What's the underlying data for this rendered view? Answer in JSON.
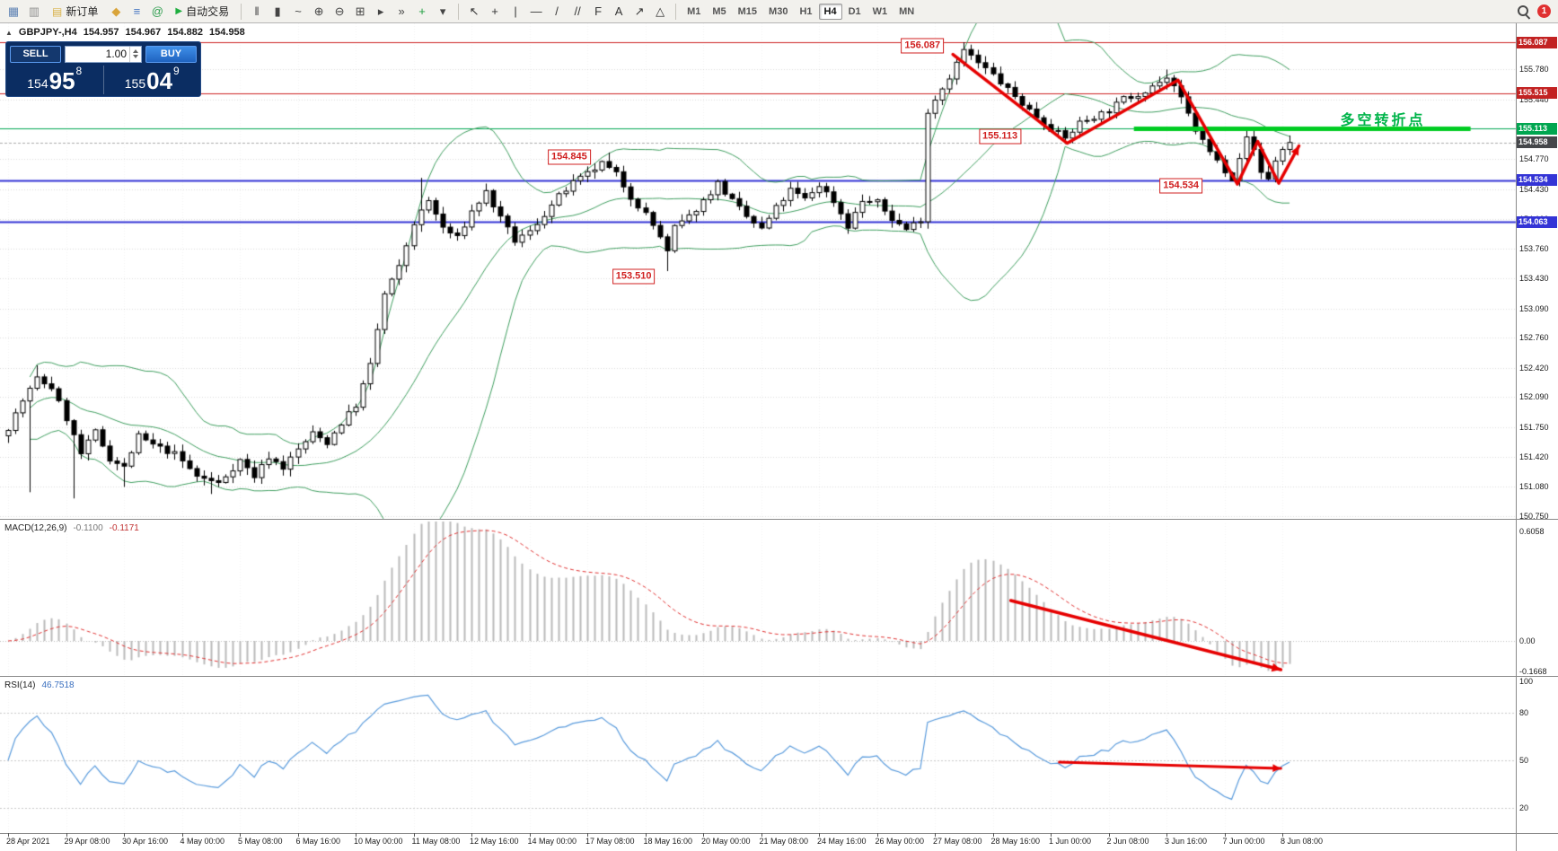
{
  "toolbar": {
    "icons_left": [
      {
        "name": "chart-window-icon",
        "glyph": "▦",
        "color": "#5f83b4"
      },
      {
        "name": "profiles-icon",
        "glyph": "▥",
        "color": "#8f8f8f"
      }
    ],
    "new_order": {
      "label": "新订单",
      "icon_glyph": "▤",
      "icon_color": "#d9b24a"
    },
    "icons_mid": [
      {
        "name": "symbols-icon",
        "glyph": "◆",
        "color": "#d9a43a"
      },
      {
        "name": "history-center-icon",
        "glyph": "≡",
        "color": "#4a78c2"
      },
      {
        "name": "community-icon",
        "glyph": "@",
        "color": "#2f9e4f"
      }
    ],
    "autotrade": {
      "label": "自动交易",
      "icon_glyph": "▶",
      "icon_color": "#1fae3f"
    },
    "icons_chart": [
      {
        "name": "bars-chart-icon",
        "glyph": "‖",
        "color": "#444444"
      },
      {
        "name": "candles-chart-icon",
        "glyph": "▮",
        "color": "#444444"
      },
      {
        "name": "line-chart-icon",
        "glyph": "~",
        "color": "#444444"
      },
      {
        "name": "zoom-in-icon",
        "glyph": "⊕",
        "color": "#444444"
      },
      {
        "name": "zoom-out-icon",
        "glyph": "⊖",
        "color": "#444444"
      },
      {
        "name": "tile-windows-icon",
        "glyph": "⊞",
        "color": "#444444"
      },
      {
        "name": "auto-scroll-icon",
        "glyph": "▸",
        "color": "#444444"
      },
      {
        "name": "chart-shift-icon",
        "glyph": "»",
        "color": "#444444"
      },
      {
        "name": "indicators-icon",
        "glyph": "+",
        "color": "#1f9e3f"
      },
      {
        "name": "templates-icon",
        "glyph": "▾",
        "color": "#444444"
      }
    ],
    "icons_tools": [
      {
        "name": "cursor-icon",
        "glyph": "↖",
        "color": "#333333"
      },
      {
        "name": "crosshair-icon",
        "glyph": "+",
        "color": "#333333"
      },
      {
        "name": "vertical-line-icon",
        "glyph": "|",
        "color": "#333333"
      },
      {
        "name": "horizontal-line-icon",
        "glyph": "—",
        "color": "#333333"
      },
      {
        "name": "trendline-icon",
        "glyph": "/",
        "color": "#333333"
      },
      {
        "name": "channel-icon",
        "glyph": "//",
        "color": "#333333"
      },
      {
        "name": "fibonacci-icon",
        "glyph": "F",
        "color": "#333333"
      },
      {
        "name": "text-icon",
        "glyph": "A",
        "color": "#333333"
      },
      {
        "name": "arrows-icon",
        "glyph": "↗",
        "color": "#333333"
      },
      {
        "name": "shapes-icon",
        "glyph": "△",
        "color": "#333333"
      }
    ],
    "timeframes": [
      "M1",
      "M5",
      "M15",
      "M30",
      "H1",
      "H4",
      "D1",
      "W1",
      "MN"
    ],
    "active_timeframe": "H4",
    "notification_count": "1"
  },
  "chart_header": {
    "symbol": "GBPJPY-,H4",
    "open": "154.957",
    "high": "154.967",
    "low": "154.882",
    "close": "154.958"
  },
  "trade_panel": {
    "sell_label": "SELL",
    "buy_label": "BUY",
    "volume": "1.00",
    "bid": {
      "int": "154",
      "pips": "95",
      "sub": "8"
    },
    "ask": {
      "int": "155",
      "pips": "04",
      "sub": "9"
    }
  },
  "price_axis": {
    "labels": [
      "155.780",
      "155.440",
      "154.770",
      "154.430",
      "154.100",
      "153.760",
      "153.430",
      "153.090",
      "152.760",
      "152.420",
      "152.090",
      "151.750",
      "151.420",
      "151.080",
      "150.750"
    ],
    "tags": [
      {
        "text": "156.087",
        "bg": "#c22222"
      },
      {
        "text": "155.515",
        "bg": "#c22222"
      },
      {
        "text": "155.113",
        "bg": "#00a650"
      },
      {
        "text": "154.958",
        "bg": "#45474b"
      },
      {
        "text": "154.534",
        "bg": "#3434d6"
      },
      {
        "text": "154.063",
        "bg": "#3434d6"
      }
    ]
  },
  "time_axis": {
    "labels": [
      "28 Apr 2021",
      "29 Apr 08:00",
      "30 Apr 16:00",
      "4 May 00:00",
      "5 May 08:00",
      "6 May 16:00",
      "10 May 00:00",
      "11 May 08:00",
      "12 May 16:00",
      "14 May 00:00",
      "17 May 08:00",
      "18 May 16:00",
      "20 May 00:00",
      "21 May 08:00",
      "24 May 16:00",
      "26 May 00:00",
      "27 May 08:00",
      "28 May 16:00",
      "1 Jun 00:00",
      "2 Jun 08:00",
      "3 Jun 16:00",
      "7 Jun 00:00",
      "8 Jun 08:00"
    ]
  },
  "main_chart": {
    "horizontal_lines": [
      {
        "price": 156.087,
        "color": "#cc2222",
        "width": 1
      },
      {
        "price": 155.515,
        "color": "#cc2222",
        "width": 1
      },
      {
        "price": 155.113,
        "color": "#00a650",
        "width": 1
      },
      {
        "price": 154.534,
        "color": "#3434d6",
        "width": 2
      },
      {
        "price": 154.063,
        "color": "#3434d6",
        "width": 2
      }
    ],
    "thick_line": {
      "price": 155.113,
      "i1": 155.5,
      "i2": 202,
      "color": "#00cc22",
      "width": 5
    },
    "bid_line_price": 154.958,
    "annotations": [
      {
        "text": "156.087",
        "i": 126.3,
        "price": 156.05
      },
      {
        "text": "155.113",
        "i": 137,
        "price": 155.03
      },
      {
        "text": "154.845",
        "i": 77.5,
        "price": 154.79
      },
      {
        "text": "154.534",
        "i": 162,
        "price": 154.47
      },
      {
        "text": "153.510",
        "i": 86.4,
        "price": 153.45
      }
    ],
    "note_text": {
      "text": "多空转折点",
      "i": 184,
      "price": 155.33,
      "color": "#00b44a"
    },
    "arrow_color": "#e60000",
    "trend_arrow_main": [
      [
        130.5,
        155.95
      ],
      [
        146.3,
        154.95
      ],
      [
        161.6,
        155.66
      ],
      [
        169.8,
        154.49
      ],
      [
        172.6,
        154.97
      ],
      [
        175.5,
        154.5
      ],
      [
        178.3,
        154.92
      ]
    ],
    "trend_arrow_macd": [
      [
        138.5,
        0.224
      ],
      [
        175.8,
        -0.159
      ]
    ],
    "trend_arrow_rsi": [
      [
        145.2,
        48.9
      ],
      [
        175.8,
        44.9
      ]
    ]
  },
  "macd_panel": {
    "label": "MACD(12,26,9)",
    "value_main": "-0.1100",
    "value_signal": "-0.1171",
    "axis_labels": [
      "0.6058",
      "0.00",
      "-0.1668"
    ],
    "axis_values": [
      0.6058,
      0,
      -0.1668
    ]
  },
  "rsi_panel": {
    "label": "RSI(14)",
    "value": "46.7518",
    "axis_labels": [
      "100",
      "80",
      "50",
      "20"
    ],
    "axis_values": [
      100,
      80,
      50,
      20
    ],
    "levels": [
      80,
      50,
      20
    ]
  },
  "chart_data": {
    "type": "candlestick",
    "symbol": "GBPJPY-",
    "timeframe": "H4",
    "candles_count": 178,
    "visible_price_range": {
      "min": 150.75,
      "max": 156.3
    },
    "close_anchors": [
      [
        0,
        151.75
      ],
      [
        2,
        152.05
      ],
      [
        4,
        152.3
      ],
      [
        6,
        152.2
      ],
      [
        8,
        151.85
      ],
      [
        10,
        151.45
      ],
      [
        12,
        151.7
      ],
      [
        14,
        151.4
      ],
      [
        16,
        151.3
      ],
      [
        18,
        151.65
      ],
      [
        20,
        151.55
      ],
      [
        23,
        151.45
      ],
      [
        26,
        151.2
      ],
      [
        29,
        151.12
      ],
      [
        32,
        151.38
      ],
      [
        34,
        151.2
      ],
      [
        36,
        151.42
      ],
      [
        38,
        151.3
      ],
      [
        40,
        151.5
      ],
      [
        42,
        151.68
      ],
      [
        44,
        151.58
      ],
      [
        46,
        151.8
      ],
      [
        48,
        152.0
      ],
      [
        50,
        152.45
      ],
      [
        52,
        153.25
      ],
      [
        54,
        153.55
      ],
      [
        56,
        154.05
      ],
      [
        58,
        154.3
      ],
      [
        60,
        154.0
      ],
      [
        62,
        153.88
      ],
      [
        64,
        154.18
      ],
      [
        66,
        154.4
      ],
      [
        68,
        154.1
      ],
      [
        70,
        153.85
      ],
      [
        72,
        153.95
      ],
      [
        74,
        154.15
      ],
      [
        76,
        154.35
      ],
      [
        78,
        154.5
      ],
      [
        80,
        154.6
      ],
      [
        82,
        154.72
      ],
      [
        84,
        154.6
      ],
      [
        86,
        154.35
      ],
      [
        88,
        154.15
      ],
      [
        90,
        153.9
      ],
      [
        91,
        153.72
      ],
      [
        92,
        154.0
      ],
      [
        94,
        154.12
      ],
      [
        96,
        154.3
      ],
      [
        98,
        154.5
      ],
      [
        100,
        154.3
      ],
      [
        102,
        154.12
      ],
      [
        104,
        153.98
      ],
      [
        106,
        154.22
      ],
      [
        108,
        154.42
      ],
      [
        110,
        154.32
      ],
      [
        112,
        154.48
      ],
      [
        114,
        154.3
      ],
      [
        116,
        154.02
      ],
      [
        118,
        154.3
      ],
      [
        120,
        154.28
      ],
      [
        122,
        154.1
      ],
      [
        124,
        153.98
      ],
      [
        126,
        154.1
      ],
      [
        127,
        155.3
      ],
      [
        128,
        155.45
      ],
      [
        130,
        155.7
      ],
      [
        132,
        156.0
      ],
      [
        134,
        155.85
      ],
      [
        136,
        155.72
      ],
      [
        138,
        155.55
      ],
      [
        140,
        155.4
      ],
      [
        142,
        155.25
      ],
      [
        144,
        155.12
      ],
      [
        146,
        155.0
      ],
      [
        148,
        155.18
      ],
      [
        150,
        155.25
      ],
      [
        152,
        155.32
      ],
      [
        154,
        155.45
      ],
      [
        156,
        155.5
      ],
      [
        158,
        155.6
      ],
      [
        160,
        155.68
      ],
      [
        162,
        155.45
      ],
      [
        164,
        155.1
      ],
      [
        166,
        154.85
      ],
      [
        168,
        154.65
      ],
      [
        169,
        154.56
      ],
      [
        170,
        154.8
      ],
      [
        171,
        155.0
      ],
      [
        172,
        154.88
      ],
      [
        173,
        154.62
      ],
      [
        174,
        154.56
      ],
      [
        175,
        154.75
      ],
      [
        176,
        154.88
      ],
      [
        177,
        154.958
      ]
    ],
    "wick_overrides": [
      {
        "i": 3,
        "low": 151.02
      },
      {
        "i": 4,
        "high": 152.45
      },
      {
        "i": 9,
        "low": 150.95
      },
      {
        "i": 16,
        "low": 151.08
      },
      {
        "i": 28,
        "low": 151.0
      },
      {
        "i": 57,
        "high": 154.56
      },
      {
        "i": 83,
        "high": 154.845
      },
      {
        "i": 91,
        "low": 153.51
      },
      {
        "i": 116,
        "low": 153.93
      },
      {
        "i": 132,
        "high": 156.087
      },
      {
        "i": 160,
        "high": 155.78
      },
      {
        "i": 169,
        "low": 154.534
      },
      {
        "i": 174,
        "low": 154.53
      }
    ],
    "indicators": {
      "bollinger": {
        "period": 20,
        "deviation": 2,
        "color": "#3f9e5f"
      },
      "macd": {
        "fast": 12,
        "slow": 26,
        "signal": 9,
        "hist_color": "#bbbbbb",
        "signal_color": "#e03030"
      },
      "rsi": {
        "period": 14,
        "color": "#5a9bdc"
      }
    }
  }
}
